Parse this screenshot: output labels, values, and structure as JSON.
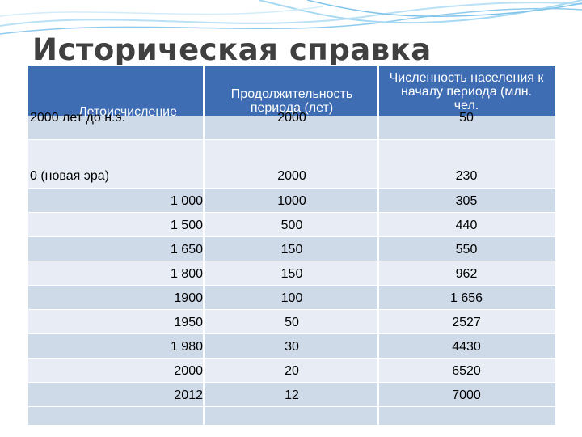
{
  "slide": {
    "title": "Историческая справка"
  },
  "table": {
    "header": {
      "col1": "Летоисчисление",
      "col2": [
        "Продолжительность",
        "периода (лет)"
      ],
      "col3": [
        "Численность населения к",
        "началу периода (млн.",
        "чел."
      ]
    },
    "rows": [
      {
        "era": "2000 лет до н.э.",
        "duration": "2000",
        "population": "50"
      },
      {
        "era": "0 (новая эра)",
        "duration": "2000",
        "population": "230"
      },
      {
        "era": "1 000",
        "duration": "1000",
        "population": "305"
      },
      {
        "era": "1 500",
        "duration": "500",
        "population": "440"
      },
      {
        "era": "1 650",
        "duration": "150",
        "population": "550"
      },
      {
        "era": "1 800",
        "duration": "150",
        "population": "962"
      },
      {
        "era": "1900",
        "duration": "100",
        "population": "1 656"
      },
      {
        "era": "1950",
        "duration": "50",
        "population": "2527"
      },
      {
        "era": "1 980",
        "duration": "30",
        "population": "4430"
      },
      {
        "era": "2000",
        "duration": "20",
        "population": "6520"
      },
      {
        "era": "2012",
        "duration": "12",
        "population": "7000"
      }
    ]
  },
  "colors": {
    "header": "#3f6db3",
    "row_dark": "#cfdae9",
    "row_light": "#e8edf5",
    "title": "#404040",
    "waves": "#9fd3f0"
  }
}
